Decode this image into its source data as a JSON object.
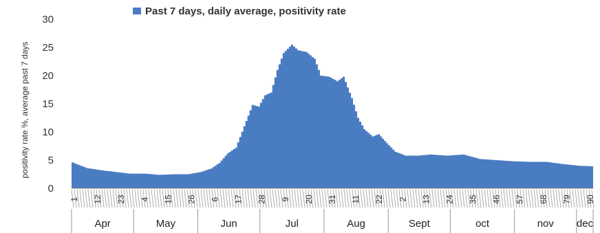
{
  "chart_data": {
    "type": "area",
    "title": "",
    "legend": {
      "position": "top",
      "entries": [
        "Past 7 days, daily average, positivity rate"
      ]
    },
    "series": [
      {
        "name": "Past 7 days, daily average, positivity rate",
        "color": "#4a7cc2",
        "keypoints": [
          [
            1,
            4.6
          ],
          [
            8,
            3.6
          ],
          [
            15,
            3.2
          ],
          [
            22,
            2.9
          ],
          [
            29,
            2.6
          ],
          [
            36,
            2.6
          ],
          [
            43,
            2.4
          ],
          [
            50,
            2.5
          ],
          [
            57,
            2.5
          ],
          [
            63,
            2.9
          ],
          [
            68,
            3.5
          ],
          [
            72,
            4.5
          ],
          [
            76,
            6.2
          ],
          [
            80,
            7.2
          ],
          [
            84,
            11.0
          ],
          [
            88,
            14.8
          ],
          [
            91,
            14.5
          ],
          [
            94,
            16.5
          ],
          [
            97,
            17.0
          ],
          [
            100,
            21.0
          ],
          [
            103,
            24.0
          ],
          [
            107,
            25.5
          ],
          [
            110,
            24.5
          ],
          [
            114,
            24.2
          ],
          [
            118,
            23.0
          ],
          [
            121,
            20.0
          ],
          [
            125,
            19.8
          ],
          [
            129,
            19.0
          ],
          [
            132,
            19.8
          ],
          [
            136,
            16.0
          ],
          [
            139,
            12.5
          ],
          [
            142,
            10.5
          ],
          [
            146,
            9.2
          ],
          [
            149,
            9.6
          ],
          [
            153,
            8.0
          ],
          [
            157,
            6.5
          ],
          [
            162,
            5.8
          ],
          [
            168,
            5.8
          ],
          [
            174,
            6.0
          ],
          [
            182,
            5.8
          ],
          [
            190,
            6.0
          ],
          [
            198,
            5.2
          ],
          [
            206,
            5.0
          ],
          [
            214,
            4.8
          ],
          [
            222,
            4.7
          ],
          [
            230,
            4.7
          ],
          [
            238,
            4.3
          ],
          [
            246,
            4.0
          ],
          [
            253,
            3.9
          ]
        ]
      }
    ],
    "y_axis": {
      "label": "positivity rate %, average past 7 days",
      "min": 0,
      "max": 30,
      "ticks": [
        0,
        5,
        10,
        15,
        20,
        25,
        30
      ]
    },
    "x_axis": {
      "min": 1,
      "max": 253,
      "day_ticks": [
        "1",
        "12",
        "23",
        "4",
        "15",
        "26",
        "6",
        "17",
        "28",
        "9",
        "20",
        "31",
        "11",
        "22",
        "2",
        "13",
        "24",
        "35",
        "46",
        "57",
        "68",
        "79",
        "90"
      ],
      "months": [
        "Apr",
        "May",
        "Jun",
        "Jul",
        "Aug",
        "Sept",
        "oct",
        "nov",
        "dec"
      ],
      "month_boundaries": [
        1,
        31,
        62,
        92,
        123,
        154,
        184,
        215,
        245,
        253
      ]
    },
    "grid": false
  }
}
